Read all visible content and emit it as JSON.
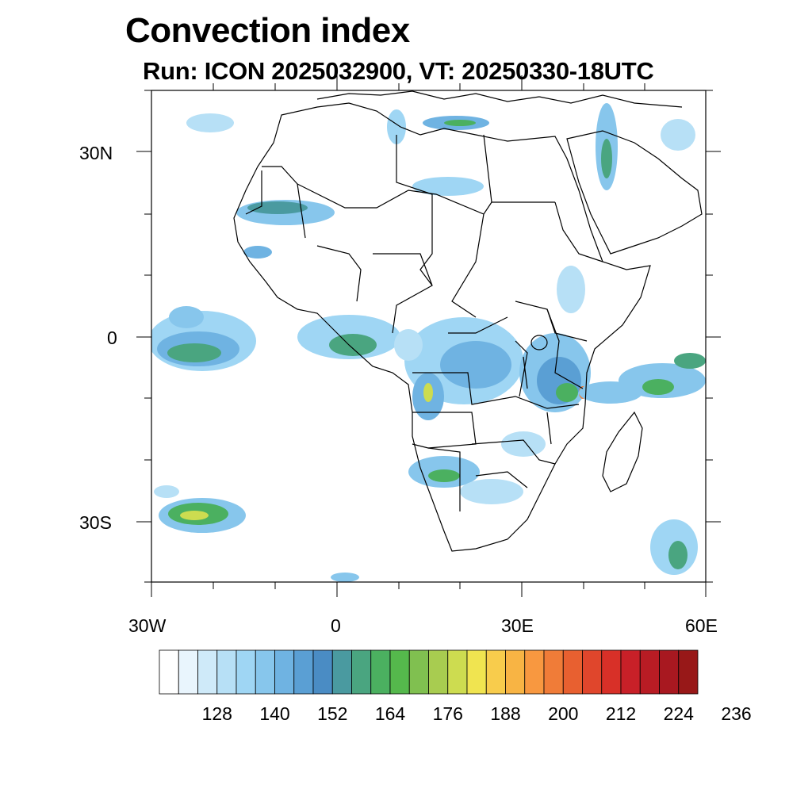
{
  "title": "Convection index",
  "subtitle": "Run: ICON 2025032900,  VT: 20250330-18UTC",
  "lat_labels": [
    "30N",
    "0",
    "30S"
  ],
  "lon_labels": [
    "30W",
    "0",
    "30E",
    "60E"
  ],
  "colorbar": {
    "colors": [
      "#ffffff",
      "#e9f5fd",
      "#cfeaf9",
      "#b7e0f6",
      "#9fd6f4",
      "#87c6ec",
      "#6fb3e2",
      "#5a9fd4",
      "#4a8cc4",
      "#4a9aa0",
      "#4aa580",
      "#4bb060",
      "#55b84c",
      "#80c050",
      "#a8cc50",
      "#cddc50",
      "#f0e450",
      "#f8cc4c",
      "#f8b444",
      "#f89840",
      "#f07c38",
      "#e86030",
      "#e0462c",
      "#d83028",
      "#c82028",
      "#b81c24",
      "#a81820",
      "#981818"
    ],
    "tick_labels": [
      "128",
      "140",
      "152",
      "164",
      "176",
      "188",
      "200",
      "212",
      "224",
      "236"
    ]
  }
}
